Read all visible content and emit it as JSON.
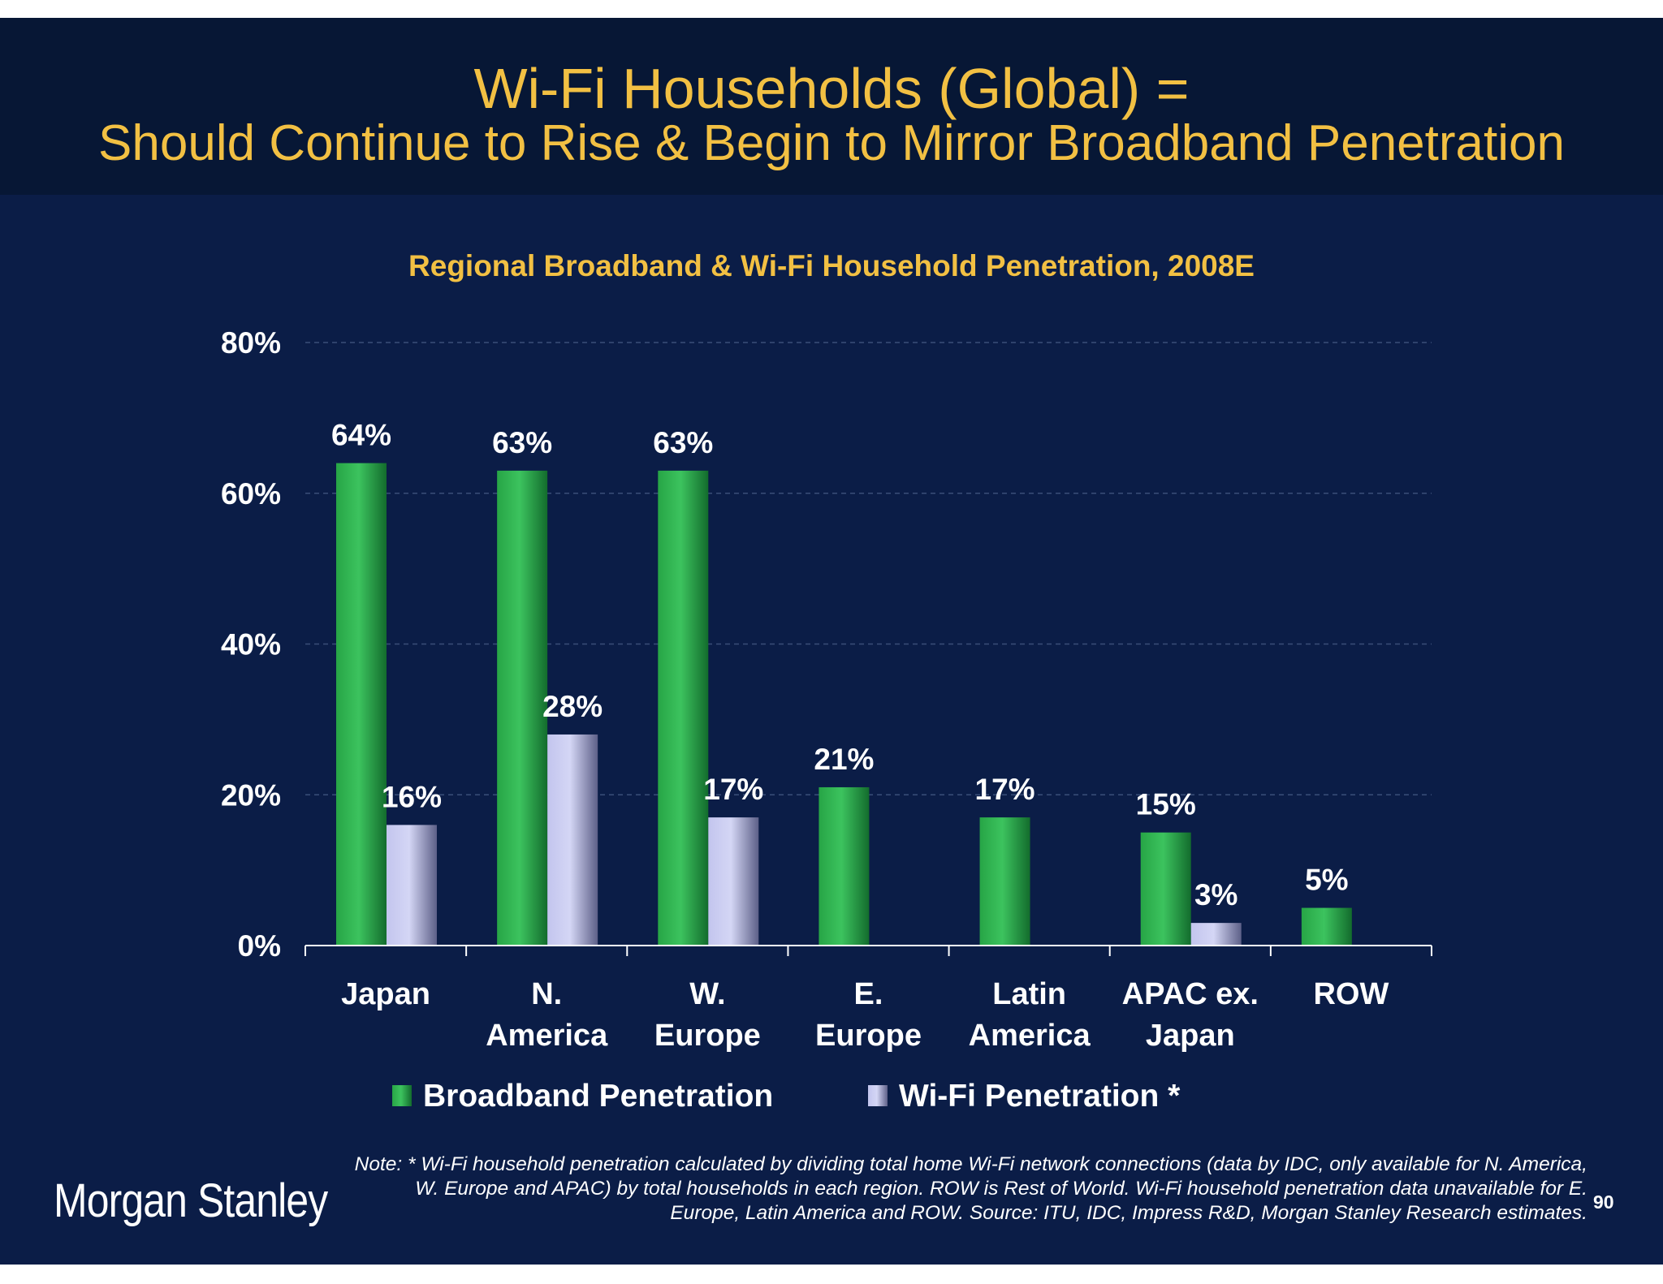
{
  "header": {
    "title_line1": "Wi-Fi Households (Global) =",
    "title_line2": "Should Continue to Rise & Begin to Mirror Broadband Penetration"
  },
  "chart_data": {
    "type": "bar",
    "title": "Regional Broadband & Wi-Fi Household Penetration, 2008E",
    "categories": [
      [
        "Japan"
      ],
      [
        "N.",
        "America"
      ],
      [
        "W.",
        "Europe"
      ],
      [
        "E.",
        "Europe"
      ],
      [
        "Latin",
        "America"
      ],
      [
        "APAC ex.",
        "Japan"
      ],
      [
        "ROW"
      ]
    ],
    "series": [
      {
        "name": "Broadband Penetration",
        "values": [
          64,
          63,
          63,
          21,
          17,
          15,
          5
        ],
        "labels": [
          "64%",
          "63%",
          "63%",
          "21%",
          "17%",
          "15%",
          "5%"
        ],
        "color": "#2bb24c"
      },
      {
        "name": "Wi-Fi Penetration *",
        "values": [
          16,
          28,
          17,
          null,
          null,
          3,
          null
        ],
        "labels": [
          "16%",
          "28%",
          "17%",
          null,
          null,
          "3%",
          null
        ],
        "color": "#c4c6ec"
      }
    ],
    "ylim": [
      0,
      80
    ],
    "yticks": [
      "0%",
      "20%",
      "40%",
      "60%",
      "80%"
    ],
    "grid": true,
    "legend": "bottom"
  },
  "footer": {
    "note": "Note: * Wi-Fi household penetration calculated by dividing total home Wi-Fi network connections (data by IDC, only available for N. America, W. Europe and APAC) by total households in each region. ROW is Rest of World. Wi-Fi household penetration data unavailable for E. Europe, Latin America and ROW. Source: ITU, IDC, Impress R&D, Morgan Stanley Research estimates.",
    "page_number": "90",
    "logo_text": "Morgan Stanley"
  }
}
